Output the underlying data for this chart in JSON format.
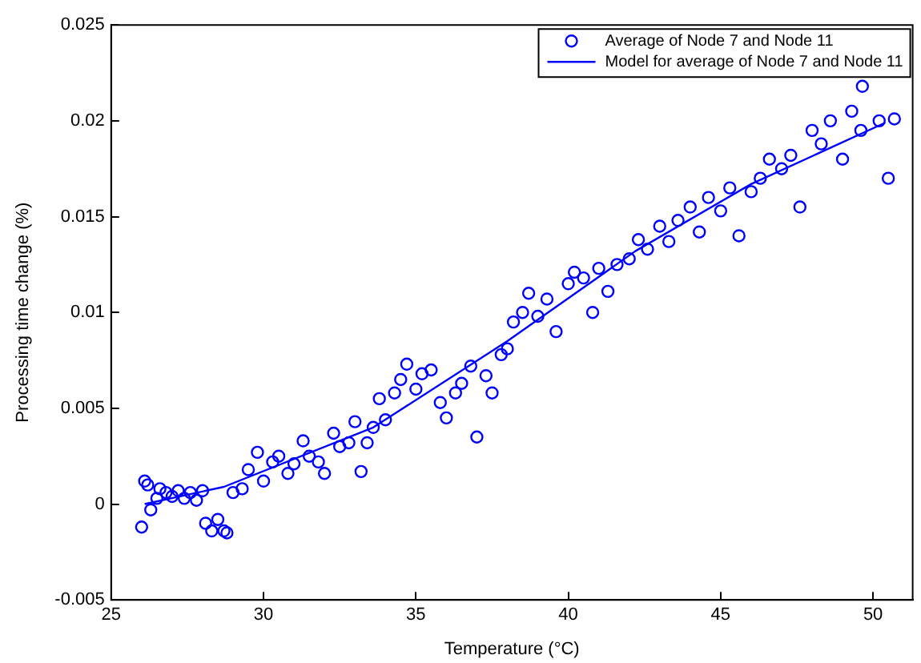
{
  "chart_data": {
    "type": "scatter",
    "xlabel": "Temperature (°C)",
    "ylabel": "Processing time change (%)",
    "xlim": [
      25,
      51.3
    ],
    "xticks": [
      25,
      30,
      35,
      40,
      45,
      50
    ],
    "ylim": [
      -0.005,
      0.025
    ],
    "yticks": [
      -0.005,
      0,
      0.005,
      0.01,
      0.015,
      0.02,
      0.025
    ],
    "grid": false,
    "legend": "top right",
    "marker": "circle",
    "series": [
      {
        "name": "Average of Node 7 and Node 11",
        "color": "#0000ff",
        "x": [
          26.0,
          26.1,
          26.2,
          26.3,
          26.5,
          26.6,
          26.8,
          27.0,
          27.2,
          27.4,
          27.6,
          27.8,
          28.0,
          28.1,
          28.3,
          28.5,
          28.7,
          28.8,
          29.0,
          29.3,
          29.5,
          29.8,
          30.0,
          30.3,
          30.5,
          30.8,
          31.0,
          31.3,
          31.5,
          31.8,
          32.0,
          32.3,
          32.5,
          32.8,
          33.0,
          33.2,
          33.4,
          33.6,
          33.8,
          34.0,
          34.3,
          34.5,
          34.7,
          35.0,
          35.2,
          35.5,
          35.8,
          36.0,
          36.3,
          36.5,
          36.8,
          37.0,
          37.3,
          37.5,
          37.8,
          38.0,
          38.2,
          38.5,
          38.7,
          39.0,
          39.3,
          39.6,
          40.0,
          40.2,
          40.5,
          40.8,
          41.0,
          41.3,
          41.6,
          42.0,
          42.3,
          42.6,
          43.0,
          43.3,
          43.6,
          44.0,
          44.3,
          44.6,
          45.0,
          45.3,
          45.6,
          46.0,
          46.3,
          46.6,
          47.0,
          47.3,
          47.6,
          48.0,
          48.3,
          48.6,
          49.0,
          49.3,
          49.6,
          49.65,
          50.2,
          50.5,
          50.7
        ],
        "values": [
          -0.0012,
          0.0012,
          0.001,
          -0.0003,
          0.0003,
          0.0008,
          0.0006,
          0.0004,
          0.0007,
          0.0003,
          0.0006,
          0.0002,
          0.0007,
          -0.001,
          -0.0014,
          -0.0008,
          -0.0014,
          -0.0015,
          0.0006,
          0.0008,
          0.0018,
          0.0027,
          0.0012,
          0.0022,
          0.0025,
          0.0016,
          0.0021,
          0.0033,
          0.0025,
          0.0022,
          0.0016,
          0.0037,
          0.003,
          0.0032,
          0.0043,
          0.0017,
          0.0032,
          0.004,
          0.0055,
          0.0044,
          0.0058,
          0.0065,
          0.0073,
          0.006,
          0.0068,
          0.007,
          0.0053,
          0.0045,
          0.0058,
          0.0063,
          0.0072,
          0.0035,
          0.0067,
          0.0058,
          0.0078,
          0.0081,
          0.0095,
          0.01,
          0.011,
          0.0098,
          0.0107,
          0.009,
          0.0115,
          0.0121,
          0.0118,
          0.01,
          0.0123,
          0.0111,
          0.0125,
          0.0128,
          0.0138,
          0.0133,
          0.0145,
          0.0137,
          0.0148,
          0.0155,
          0.0142,
          0.016,
          0.0153,
          0.0165,
          0.014,
          0.0163,
          0.017,
          0.018,
          0.0175,
          0.0182,
          0.0155,
          0.0195,
          0.0188,
          0.02,
          0.018,
          0.0205,
          0.0195,
          0.0218,
          0.02,
          0.017,
          0.0201
        ]
      },
      {
        "name": "Model for average of Node 7 and Node 11",
        "type": "line",
        "color": "#0000ff",
        "marker": "none",
        "line_style": "solid",
        "x": [
          26.1,
          28.7,
          33.6,
          38,
          42.2,
          46,
          50.4
        ],
        "values": [
          0,
          0.0009,
          0.004,
          0.0085,
          0.0132,
          0.0167,
          0.0199
        ]
      }
    ]
  }
}
